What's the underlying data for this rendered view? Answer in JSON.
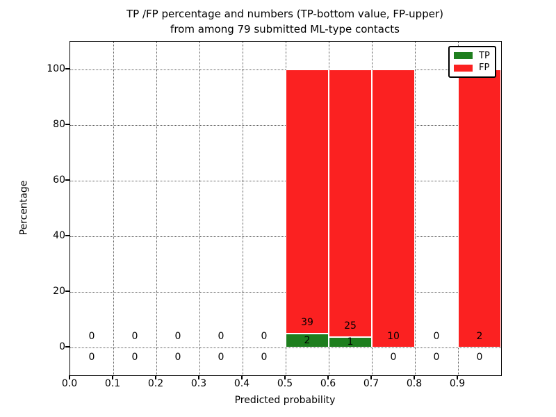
{
  "figure": {
    "title_line1": "TP /FP percentage and numbers (TP-bottom value, FP-upper)",
    "title_line2": "from among 79 submitted ML-type contacts"
  },
  "legend": {
    "items": [
      {
        "label": "TP",
        "color": "#1e7e1e"
      },
      {
        "label": "FP",
        "color": "#fb2121"
      }
    ]
  },
  "colors": {
    "tp_green": "#1e7e1e",
    "fp_red": "#fb2121",
    "grid": "rgba(0,0,0,0.65)"
  },
  "chart_data": {
    "type": "bar",
    "stacked": true,
    "title": "TP /FP percentage and numbers (TP-bottom value, FP-upper) from among 79 submitted ML-type contacts",
    "xlabel": "Predicted probability",
    "ylabel": "Percentage",
    "xlim": [
      0.0,
      1.0
    ],
    "ylim": [
      -10,
      110
    ],
    "grid": "dotted",
    "legend_position": "upper right",
    "total_contacts": 79,
    "bin_width": 0.1,
    "bin_starts": [
      0.0,
      0.1,
      0.2,
      0.3,
      0.4,
      0.5,
      0.6,
      0.7,
      0.8,
      0.9
    ],
    "xtick_labels": [
      "0.0",
      "0.1",
      "0.2",
      "0.3",
      "0.4",
      "0.5",
      "0.6",
      "0.7",
      "0.8",
      "0.9"
    ],
    "ytick_values": [
      0,
      20,
      40,
      60,
      80,
      100
    ],
    "series": [
      {
        "name": "TP",
        "color": "#1e7e1e",
        "counts": [
          0,
          0,
          0,
          0,
          0,
          2,
          1,
          0,
          0,
          0
        ]
      },
      {
        "name": "FP",
        "color": "#fb2121",
        "counts": [
          0,
          0,
          0,
          0,
          0,
          39,
          25,
          10,
          0,
          2
        ]
      }
    ],
    "bar_percentages": {
      "note": "per-bin stacked percentages TP/(TP+FP)*100 and FP/(TP+FP)*100; empty bins have no bar",
      "tp": [
        0,
        0,
        0,
        0,
        0,
        4.88,
        3.85,
        0,
        0,
        0
      ],
      "fp": [
        0,
        0,
        0,
        0,
        0,
        95.12,
        96.15,
        100,
        0,
        100
      ]
    }
  }
}
